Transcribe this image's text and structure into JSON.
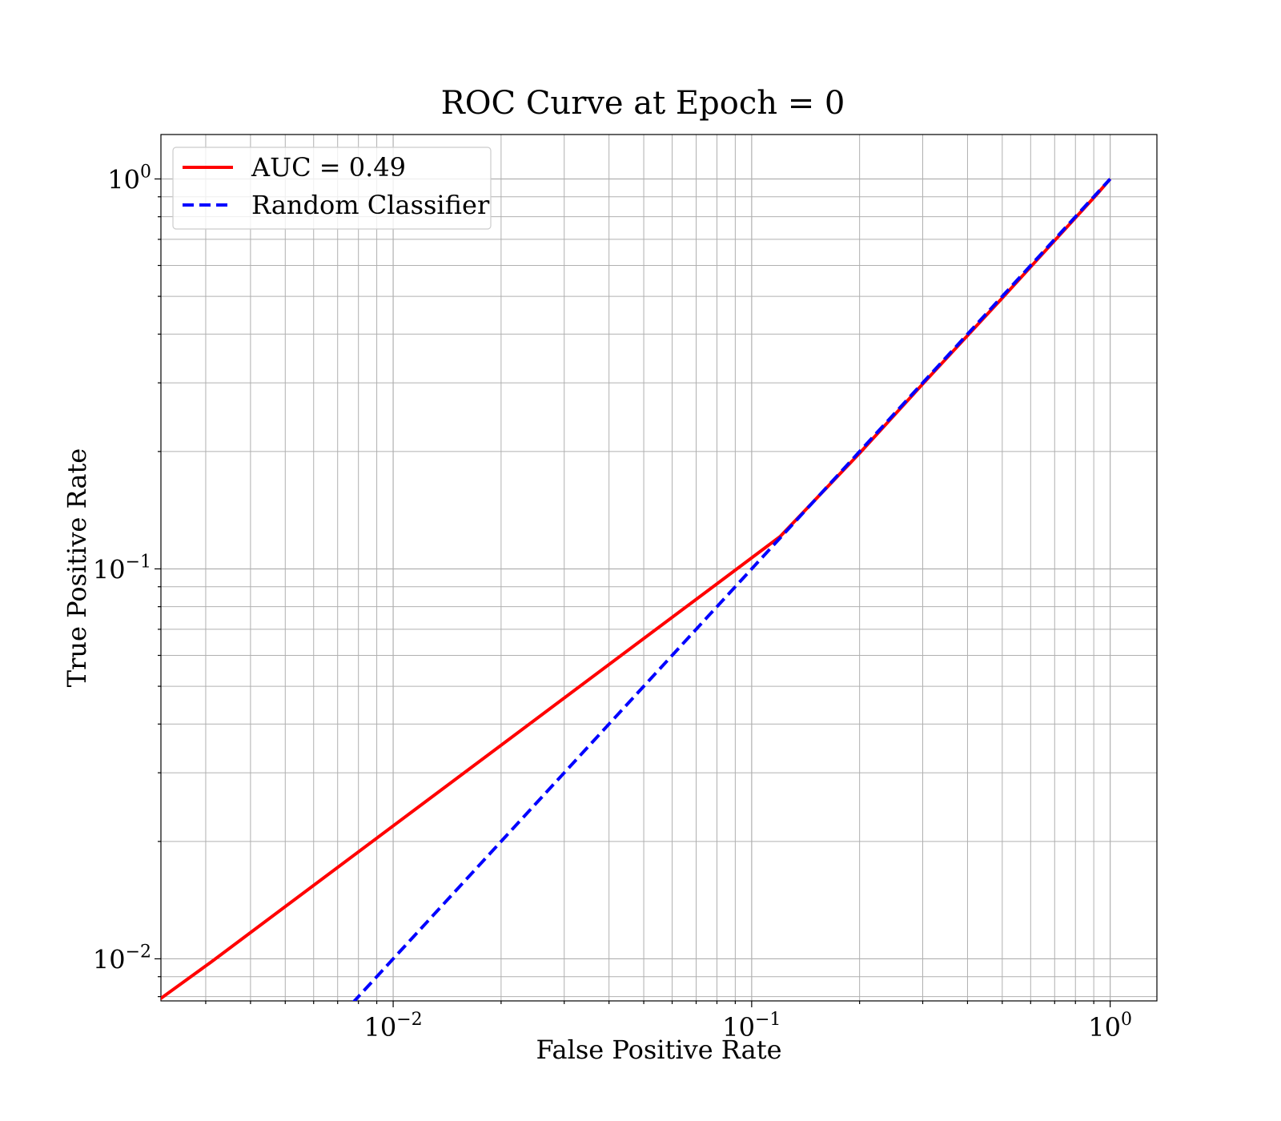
{
  "chart_data": {
    "type": "line",
    "title": "ROC Curve at Epoch = 0",
    "xlabel": "False Positive Rate",
    "ylabel": "True Positive Rate",
    "xscale": "log",
    "yscale": "log",
    "xlim": [
      0.00225,
      1.35
    ],
    "ylim": [
      0.0078,
      1.3
    ],
    "grid": "both (major and minor)",
    "legend_position": "top-left",
    "x_ticks": [
      {
        "base": "10",
        "exp": "−2",
        "value": 0.01
      },
      {
        "base": "10",
        "exp": "−1",
        "value": 0.1
      },
      {
        "base": "10",
        "exp": "0",
        "value": 1
      }
    ],
    "y_ticks": [
      {
        "base": "10",
        "exp": "−2",
        "value": 0.01
      },
      {
        "base": "10",
        "exp": "−1",
        "value": 0.1
      },
      {
        "base": "10",
        "exp": "0",
        "value": 1
      }
    ],
    "series": [
      {
        "name": "AUC = 0.49",
        "color": "#ff0000",
        "style": "solid",
        "x": [
          0.0022,
          0.0031,
          0.12,
          0.2,
          0.3,
          0.5,
          0.7,
          0.92,
          1.0
        ],
        "y": [
          0.0078,
          0.0098,
          0.121,
          0.198,
          0.298,
          0.495,
          0.695,
          0.915,
          1.0
        ]
      },
      {
        "name": "Random Classifier",
        "color": "#0000ff",
        "style": "dashed",
        "x": [
          0.0077,
          1.0
        ],
        "y": [
          0.0077,
          1.0
        ]
      }
    ]
  }
}
